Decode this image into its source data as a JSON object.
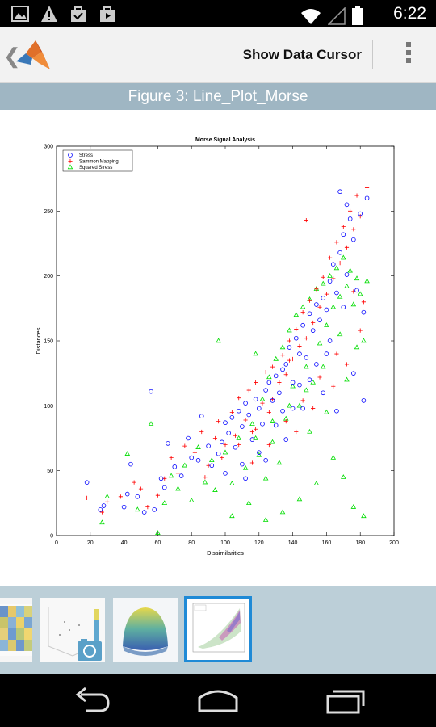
{
  "status_bar": {
    "time": "6:22",
    "left_icons": [
      "image-icon",
      "warning-icon",
      "shopping-bag-icon",
      "play-store-icon"
    ],
    "right_icons": [
      "wifi-icon",
      "cell-signal-icon",
      "battery-icon"
    ]
  },
  "action_bar": {
    "title": "Show Data Cursor",
    "back_icon": "chevron-left-icon",
    "logo_icon": "matlab-logo-icon",
    "menu_icon": "overflow-menu-icon"
  },
  "figure_header": "Figure 3: Line_Plot_Morse",
  "chart_data": {
    "type": "scatter",
    "title": "Morse Signal Analysis",
    "xlabel": "Dissimilarities",
    "ylabel": "Distances",
    "xlim": [
      0,
      200
    ],
    "ylim": [
      0,
      300
    ],
    "xticks": [
      0,
      20,
      40,
      60,
      80,
      100,
      120,
      140,
      160,
      180,
      200
    ],
    "yticks": [
      0,
      50,
      100,
      150,
      200,
      250,
      300
    ],
    "legend_placement": "top-left",
    "grid": false,
    "series": [
      {
        "name": "Stress",
        "marker": "circle",
        "color": "#0000ff",
        "points": [
          [
            18,
            41
          ],
          [
            26,
            20
          ],
          [
            28,
            23
          ],
          [
            40,
            22
          ],
          [
            42,
            32
          ],
          [
            44,
            55
          ],
          [
            48,
            30
          ],
          [
            52,
            18
          ],
          [
            56,
            111
          ],
          [
            58,
            20
          ],
          [
            62,
            44
          ],
          [
            64,
            37
          ],
          [
            66,
            71
          ],
          [
            70,
            53
          ],
          [
            74,
            46
          ],
          [
            78,
            75
          ],
          [
            80,
            60
          ],
          [
            84,
            58
          ],
          [
            86,
            92
          ],
          [
            90,
            69
          ],
          [
            92,
            54
          ],
          [
            96,
            63
          ],
          [
            98,
            72
          ],
          [
            100,
            87
          ],
          [
            102,
            79
          ],
          [
            104,
            91
          ],
          [
            106,
            68
          ],
          [
            108,
            96
          ],
          [
            110,
            84
          ],
          [
            112,
            102
          ],
          [
            114,
            93
          ],
          [
            116,
            74
          ],
          [
            118,
            105
          ],
          [
            120,
            98
          ],
          [
            122,
            86
          ],
          [
            124,
            112
          ],
          [
            126,
            118
          ],
          [
            128,
            104
          ],
          [
            130,
            123
          ],
          [
            132,
            110
          ],
          [
            134,
            128
          ],
          [
            136,
            132
          ],
          [
            138,
            145
          ],
          [
            140,
            118
          ],
          [
            142,
            152
          ],
          [
            144,
            140
          ],
          [
            146,
            162
          ],
          [
            148,
            137
          ],
          [
            150,
            171
          ],
          [
            152,
            158
          ],
          [
            154,
            178
          ],
          [
            156,
            166
          ],
          [
            158,
            183
          ],
          [
            160,
            174
          ],
          [
            162,
            196
          ],
          [
            164,
            209
          ],
          [
            166,
            187
          ],
          [
            168,
            218
          ],
          [
            170,
            232
          ],
          [
            172,
            201
          ],
          [
            174,
            244
          ],
          [
            176,
            228
          ],
          [
            178,
            189
          ],
          [
            180,
            248
          ],
          [
            182,
            172
          ],
          [
            184,
            260
          ],
          [
            170,
            176
          ],
          [
            160,
            140
          ],
          [
            150,
            120
          ],
          [
            140,
            98
          ],
          [
            130,
            85
          ],
          [
            120,
            64
          ],
          [
            110,
            55
          ],
          [
            100,
            48
          ],
          [
            176,
            125
          ],
          [
            182,
            104
          ],
          [
            166,
            96
          ],
          [
            158,
            110
          ],
          [
            146,
            98
          ],
          [
            136,
            74
          ],
          [
            124,
            58
          ],
          [
            112,
            44
          ],
          [
            168,
            265
          ],
          [
            172,
            255
          ],
          [
            162,
            150
          ],
          [
            154,
            132
          ],
          [
            144,
            116
          ],
          [
            134,
            96
          ]
        ]
      },
      {
        "name": "Sammon Mapping",
        "marker": "plus",
        "color": "#ff0000",
        "points": [
          [
            18,
            29
          ],
          [
            27,
            18
          ],
          [
            30,
            26
          ],
          [
            38,
            30
          ],
          [
            46,
            41
          ],
          [
            50,
            36
          ],
          [
            54,
            22
          ],
          [
            60,
            31
          ],
          [
            64,
            44
          ],
          [
            68,
            60
          ],
          [
            72,
            48
          ],
          [
            76,
            69
          ],
          [
            82,
            64
          ],
          [
            86,
            80
          ],
          [
            90,
            54
          ],
          [
            94,
            75
          ],
          [
            96,
            88
          ],
          [
            100,
            70
          ],
          [
            104,
            95
          ],
          [
            106,
            77
          ],
          [
            108,
            106
          ],
          [
            112,
            89
          ],
          [
            114,
            112
          ],
          [
            116,
            80
          ],
          [
            118,
            118
          ],
          [
            122,
            102
          ],
          [
            124,
            126
          ],
          [
            126,
            95
          ],
          [
            128,
            130
          ],
          [
            132,
            118
          ],
          [
            134,
            139
          ],
          [
            136,
            124
          ],
          [
            138,
            150
          ],
          [
            140,
            136
          ],
          [
            142,
            159
          ],
          [
            144,
            146
          ],
          [
            146,
            172
          ],
          [
            148,
            152
          ],
          [
            150,
            181
          ],
          [
            152,
            164
          ],
          [
            154,
            190
          ],
          [
            156,
            176
          ],
          [
            158,
            199
          ],
          [
            160,
            186
          ],
          [
            162,
            214
          ],
          [
            164,
            198
          ],
          [
            166,
            226
          ],
          [
            168,
            210
          ],
          [
            170,
            238
          ],
          [
            172,
            222
          ],
          [
            174,
            250
          ],
          [
            176,
            236
          ],
          [
            178,
            262
          ],
          [
            180,
            246
          ],
          [
            182,
            180
          ],
          [
            184,
            268
          ],
          [
            148,
            243
          ],
          [
            138,
            135
          ],
          [
            128,
            105
          ],
          [
            118,
            82
          ],
          [
            108,
            70
          ],
          [
            98,
            60
          ],
          [
            88,
            45
          ],
          [
            176,
            188
          ],
          [
            166,
            140
          ],
          [
            156,
            122
          ],
          [
            146,
            104
          ],
          [
            136,
            88
          ],
          [
            126,
            70
          ],
          [
            116,
            56
          ],
          [
            180,
            158
          ],
          [
            172,
            132
          ],
          [
            164,
            115
          ],
          [
            152,
            98
          ],
          [
            142,
            80
          ]
        ]
      },
      {
        "name": "Squared Stress",
        "marker": "triangle",
        "color": "#00dd00",
        "points": [
          [
            27,
            10
          ],
          [
            30,
            30
          ],
          [
            42,
            63
          ],
          [
            48,
            20
          ],
          [
            56,
            86
          ],
          [
            60,
            2
          ],
          [
            64,
            25
          ],
          [
            68,
            46
          ],
          [
            72,
            36
          ],
          [
            76,
            54
          ],
          [
            80,
            27
          ],
          [
            84,
            68
          ],
          [
            88,
            41
          ],
          [
            92,
            58
          ],
          [
            96,
            150
          ],
          [
            100,
            64
          ],
          [
            104,
            40
          ],
          [
            108,
            75
          ],
          [
            112,
            52
          ],
          [
            116,
            86
          ],
          [
            118,
            140
          ],
          [
            120,
            62
          ],
          [
            122,
            105
          ],
          [
            124,
            44
          ],
          [
            126,
            122
          ],
          [
            128,
            72
          ],
          [
            130,
            136
          ],
          [
            132,
            56
          ],
          [
            134,
            145
          ],
          [
            136,
            90
          ],
          [
            138,
            158
          ],
          [
            140,
            115
          ],
          [
            142,
            170
          ],
          [
            144,
            100
          ],
          [
            146,
            176
          ],
          [
            148,
            130
          ],
          [
            150,
            182
          ],
          [
            152,
            118
          ],
          [
            154,
            190
          ],
          [
            156,
            148
          ],
          [
            158,
            194
          ],
          [
            160,
            162
          ],
          [
            162,
            200
          ],
          [
            164,
            176
          ],
          [
            166,
            206
          ],
          [
            168,
            184
          ],
          [
            170,
            214
          ],
          [
            172,
            192
          ],
          [
            174,
            204
          ],
          [
            176,
            178
          ],
          [
            178,
            198
          ],
          [
            180,
            186
          ],
          [
            182,
            150
          ],
          [
            184,
            196
          ],
          [
            176,
            22
          ],
          [
            182,
            15
          ],
          [
            170,
            45
          ],
          [
            164,
            60
          ],
          [
            154,
            40
          ],
          [
            144,
            28
          ],
          [
            134,
            18
          ],
          [
            124,
            12
          ],
          [
            114,
            25
          ],
          [
            104,
            15
          ],
          [
            94,
            35
          ],
          [
            150,
            80
          ],
          [
            160,
            95
          ],
          [
            172,
            120
          ],
          [
            178,
            145
          ],
          [
            168,
            155
          ],
          [
            158,
            130
          ],
          [
            148,
            112
          ],
          [
            138,
            100
          ],
          [
            128,
            88
          ],
          [
            118,
            75
          ]
        ]
      }
    ]
  },
  "thumbnails": [
    {
      "name": "heatmap-thumbnail",
      "selected": false
    },
    {
      "name": "scatter3-thumbnail",
      "selected": false
    },
    {
      "name": "surface-thumbnail",
      "selected": false
    },
    {
      "name": "morse-scatter-thumbnail",
      "selected": true
    }
  ],
  "nav_bar": {
    "icons": [
      "back-icon",
      "home-icon",
      "recent-apps-icon"
    ]
  }
}
